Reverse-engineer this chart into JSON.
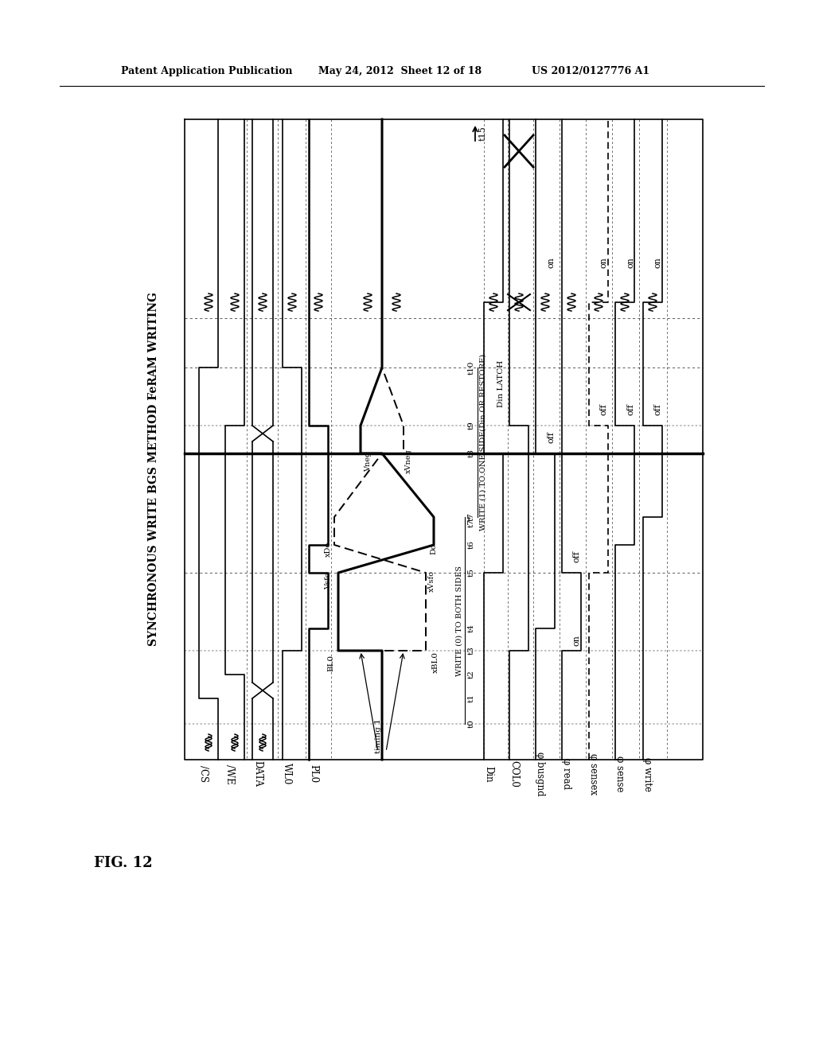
{
  "patent_header_left": "Patent Application Publication",
  "patent_header_mid": "May 24, 2012  Sheet 12 of 18",
  "patent_header_right": "US 2012/0127776 A1",
  "fig_label": "FIG. 12",
  "diagram_title": "SYNCHRONOUS WRITE BGS METHOD FeRAM WRITING",
  "signal_names": [
    "/CS",
    "/WE",
    "DATA",
    "WL0",
    "PL0",
    "Din",
    "COL0",
    "φ busgnd",
    "φ read",
    "φ sensex",
    "φ sense",
    "φ write"
  ],
  "bg_color": "#ffffff"
}
